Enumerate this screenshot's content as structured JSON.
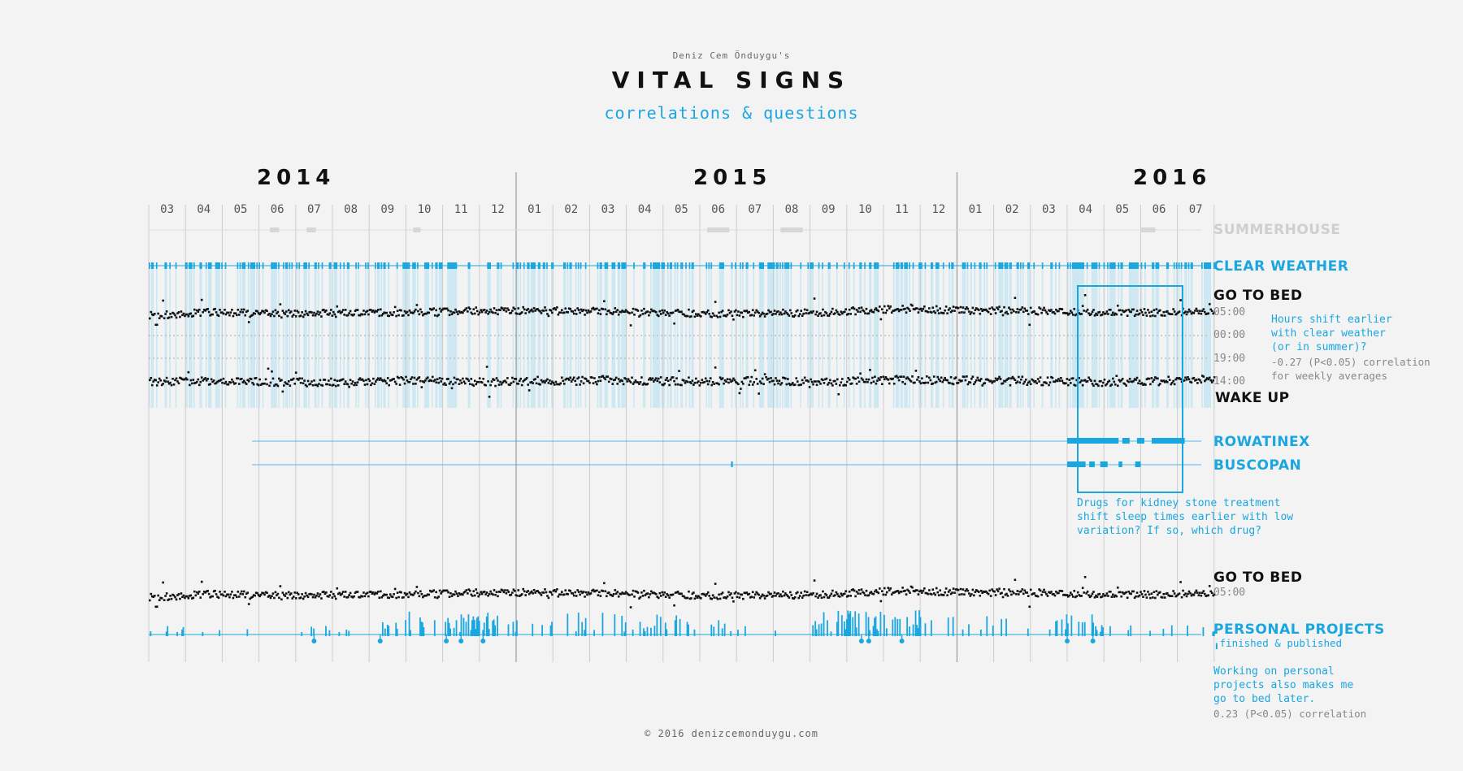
{
  "header": {
    "author": "Deniz Cem Önduygu's",
    "title": "VITAL SIGNS",
    "subtitle": "correlations & questions"
  },
  "chart_data": {
    "type": "scatter",
    "years": [
      "2014",
      "2015",
      "2016"
    ],
    "months": [
      "03",
      "04",
      "05",
      "06",
      "07",
      "08",
      "09",
      "10",
      "11",
      "12",
      "01",
      "02",
      "03",
      "04",
      "05",
      "06",
      "07",
      "08",
      "09",
      "10",
      "11",
      "12",
      "01",
      "02",
      "03",
      "04",
      "05",
      "06",
      "07"
    ],
    "rows": [
      {
        "name": "SUMMERHOUSE",
        "color": "#cfcfcf",
        "periods_month_index": [
          [
            3.3,
            3.55
          ],
          [
            4.3,
            4.55
          ],
          [
            7.2,
            7.4
          ],
          [
            15.2,
            15.8
          ],
          [
            17.2,
            17.8
          ],
          [
            27.0,
            27.4
          ]
        ]
      },
      {
        "name": "CLEAR WEATHER",
        "color": "#1aa7e0",
        "note": "daily clear-weather marks, dense throughout the period"
      },
      {
        "name": "GO TO BED",
        "color": "#111111",
        "y_ticks": [
          "05:00",
          "00:00"
        ],
        "approx_hour_by_month": [
          4.6,
          5.2,
          5.0,
          4.8,
          5.0,
          4.9,
          5.1,
          5.2,
          5.4,
          5.5,
          5.5,
          5.4,
          5.3,
          5.1,
          5.0,
          4.8,
          4.9,
          5.0,
          5.2,
          5.6,
          5.9,
          5.7,
          5.5,
          5.6,
          5.4,
          5.2,
          5.1,
          5.1,
          5.3
        ]
      },
      {
        "name": "WAKE UP",
        "color": "#111111",
        "y_ticks": [
          "19:00",
          "14:00"
        ],
        "approx_hour_by_month": [
          14.1,
          14.3,
          14.1,
          14.0,
          13.9,
          13.9,
          14.2,
          14.4,
          14.1,
          14.0,
          14.3,
          14.2,
          14.5,
          14.3,
          14.2,
          14.1,
          14.3,
          14.2,
          14.0,
          14.4,
          14.5,
          14.3,
          14.4,
          14.3,
          14.2,
          14.1,
          14.0,
          14.2,
          14.6
        ]
      },
      {
        "name": "ROWATINEX",
        "color": "#1aa7e0",
        "periods_month_index": [
          [
            25.0,
            26.4
          ],
          [
            26.5,
            26.7
          ],
          [
            26.9,
            27.1
          ],
          [
            27.3,
            28.2
          ]
        ]
      },
      {
        "name": "BUSCOPAN",
        "color": "#1aa7e0",
        "periods_month_index": [
          [
            15.85,
            15.9
          ],
          [
            25.0,
            25.5
          ],
          [
            25.6,
            25.75
          ],
          [
            25.9,
            26.1
          ],
          [
            26.4,
            26.5
          ],
          [
            26.85,
            27.0
          ]
        ]
      },
      {
        "name": "GO TO BED",
        "color": "#111111",
        "y_ticks": [
          "05:00"
        ]
      },
      {
        "name": "PERSONAL PROJECTS",
        "color": "#1aa7e0",
        "published_month_index": [
          4.5,
          6.3,
          8.1,
          8.5,
          9.1,
          19.4,
          19.6,
          20.5,
          25.0,
          25.7
        ]
      }
    ],
    "legend_published": "finished & published"
  },
  "annotations": {
    "clear_weather": {
      "question": [
        "Hours shift earlier",
        "with clear weather",
        "(or in summer)?"
      ],
      "stat": [
        "-0.27 (P<0.05) correlation",
        "for weekly averages"
      ]
    },
    "drugs": {
      "question": [
        "Drugs for kidney stone treatment",
        "shift sleep times earlier with low",
        "variation? If so, which drug?"
      ]
    },
    "projects": {
      "question": [
        "Working on personal",
        "projects also makes me",
        "go to bed later."
      ],
      "stat": [
        "0.23 (P<0.05) correlation"
      ]
    }
  },
  "colors": {
    "accent": "#1aa7e0",
    "light_accent": "#cde8f2",
    "dots": "#111111",
    "summer": "#d6d6d6",
    "grid": "#cccccc"
  },
  "footer": "© 2016 denizcemonduygu.com"
}
